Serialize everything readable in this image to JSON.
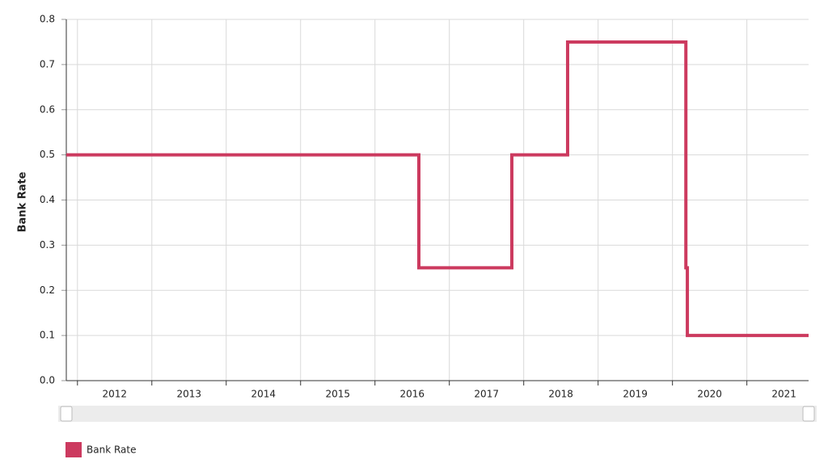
{
  "chart_data": {
    "type": "line",
    "step": true,
    "y_label": "Bank Rate",
    "x": [
      2011.85,
      2016.59,
      2016.59,
      2017.84,
      2017.84,
      2018.59,
      2018.59,
      2020.18,
      2020.18,
      2020.2,
      2020.2,
      2021.83
    ],
    "series": [
      {
        "name": "Bank Rate",
        "color": "#cc3a5f",
        "values": [
          0.5,
          0.5,
          0.25,
          0.25,
          0.5,
          0.5,
          0.75,
          0.75,
          0.25,
          0.25,
          0.1,
          0.1
        ]
      }
    ],
    "xlim": [
      2011.85,
      2021.83
    ],
    "xticks": [
      2012,
      2013,
      2014,
      2015,
      2016,
      2017,
      2018,
      2019,
      2020,
      2021
    ],
    "ylim": [
      0,
      0.8
    ],
    "yticks": [
      {
        "value": 0,
        "label": "0.0"
      },
      0.1,
      0.2,
      0.3,
      0.4,
      0.5,
      0.6,
      0.7,
      0.8
    ],
    "grid": true,
    "legend": "bottom-left"
  }
}
